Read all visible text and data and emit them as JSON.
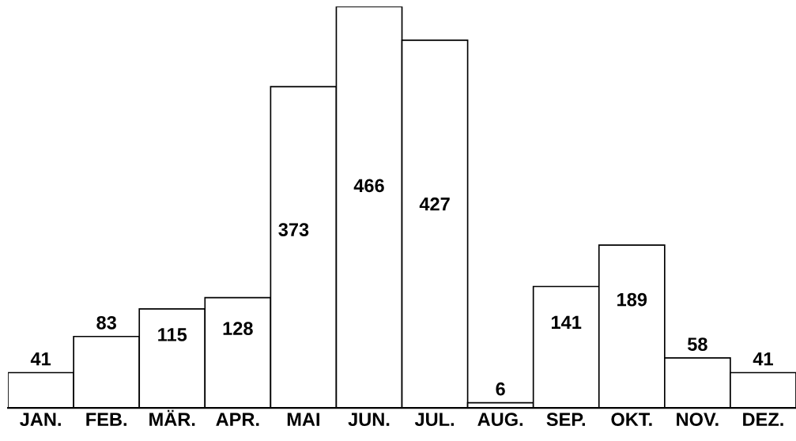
{
  "chart_data": {
    "type": "bar",
    "categories": [
      "JAN.",
      "FEB.",
      "MÄR.",
      "APR.",
      "MAI",
      "JUN.",
      "JUL.",
      "AUG.",
      "SEP.",
      "OKT.",
      "NOV.",
      "DEZ."
    ],
    "values": [
      41,
      83,
      115,
      128,
      373,
      466,
      427,
      6,
      141,
      189,
      58,
      41
    ],
    "color": "#ffffff",
    "data_labels": true,
    "grid": false,
    "legend": false
  }
}
